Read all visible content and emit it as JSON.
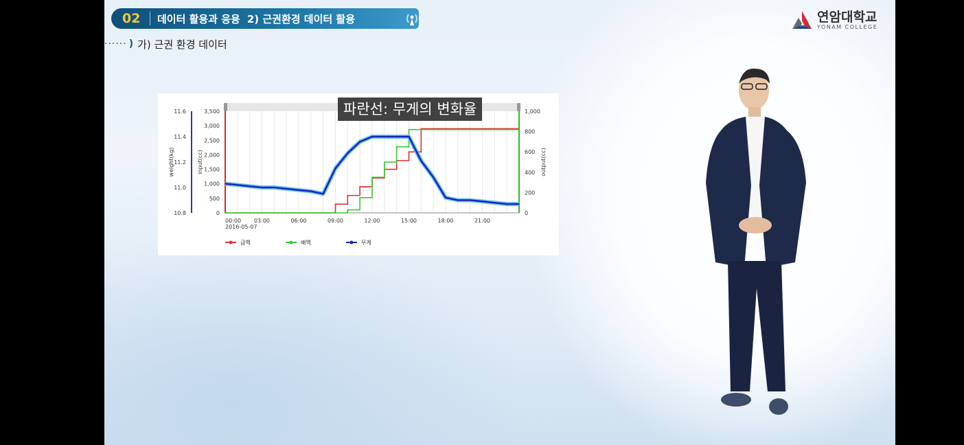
{
  "header": {
    "chapter_number": "02",
    "title": "데이터 활용과 응용",
    "subtitle": "2) 근권환경 데이터 활용"
  },
  "section": {
    "dots": "······",
    "wave": ")",
    "title": "가) 근권 환경 데이터"
  },
  "logo": {
    "name": "연암대학교",
    "english": "YONAM COLLEGE",
    "colors": [
      "#d8283a",
      "#1c4f86",
      "#6a6a6a"
    ]
  },
  "caption": "파란선: 무게의 변화율",
  "chart_data": {
    "type": "line",
    "x": [
      "00:00",
      "01:00",
      "02:00",
      "03:00",
      "04:00",
      "05:00",
      "06:00",
      "07:00",
      "08:00",
      "09:00",
      "10:00",
      "11:00",
      "12:00",
      "13:00",
      "14:00",
      "15:00",
      "16:00",
      "17:00",
      "18:00",
      "19:00",
      "20:00",
      "21:00",
      "22:00",
      "23:00",
      "24:00"
    ],
    "x_tick_labels": [
      "00:00",
      "03:00",
      "06:00",
      "09:00",
      "12:00",
      "15:00",
      "18:00",
      "21:00"
    ],
    "x_date_label": "2016-05-07",
    "y_left_outer": {
      "label": "weight(kg)",
      "ticks": [
        "11.6",
        "11.4",
        "11.2",
        "11.0",
        "10.8"
      ],
      "range": [
        10.8,
        11.6
      ],
      "color": "#2d3a9e"
    },
    "y_left_inner": {
      "label": "input(cc)",
      "ticks": [
        "3,500",
        "3,000",
        "2,500",
        "2,000",
        "1,500",
        "1,000",
        "500",
        "0"
      ],
      "range": [
        0,
        3500
      ],
      "color": "#d62a2a"
    },
    "y_right": {
      "label": "output(cc)",
      "ticks": [
        "1,000",
        "800",
        "600",
        "400",
        "200",
        "0"
      ],
      "range": [
        0,
        1000
      ],
      "color": "#22c222"
    },
    "series": [
      {
        "name": "급액",
        "color": "#e03030",
        "axis": "input",
        "values": [
          0,
          0,
          0,
          0,
          0,
          0,
          0,
          0,
          0,
          300,
          600,
          900,
          1200,
          1500,
          1800,
          2100,
          2900,
          2900,
          2900,
          2900,
          2900,
          2900,
          2900,
          2900,
          2900
        ]
      },
      {
        "name": "배액",
        "color": "#2ecc2e",
        "axis": "output",
        "values": [
          0,
          0,
          0,
          0,
          0,
          0,
          0,
          0,
          0,
          0,
          30,
          150,
          350,
          500,
          650,
          820,
          820,
          820,
          820,
          820,
          820,
          820,
          820,
          820,
          820
        ]
      },
      {
        "name": "무게",
        "color": "#1427b8",
        "axis": "weight",
        "values": [
          11.03,
          11.02,
          11.01,
          11.0,
          11.0,
          10.99,
          10.98,
          10.97,
          10.95,
          11.15,
          11.27,
          11.36,
          11.4,
          11.4,
          11.4,
          11.4,
          11.21,
          11.08,
          10.92,
          10.9,
          10.9,
          10.89,
          10.88,
          10.87,
          10.87
        ]
      }
    ],
    "legend": [
      "급액",
      "배액",
      "무게"
    ],
    "legend_position": "bottom-left",
    "grid": true
  }
}
